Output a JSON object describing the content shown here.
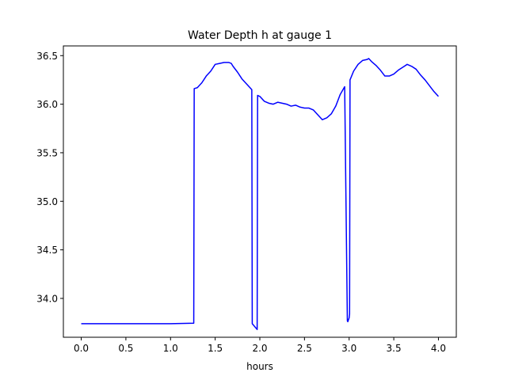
{
  "chart_data": {
    "type": "line",
    "title": "Water Depth h at gauge 1",
    "xlabel": "hours",
    "ylabel": "",
    "xlim": [
      -0.2,
      4.2
    ],
    "ylim": [
      33.6,
      36.6
    ],
    "xticks": [
      0.0,
      0.5,
      1.0,
      1.5,
      2.0,
      2.5,
      3.0,
      3.5,
      4.0
    ],
    "xtick_labels": [
      "0.0",
      "0.5",
      "1.0",
      "1.5",
      "2.0",
      "2.5",
      "3.0",
      "3.5",
      "4.0"
    ],
    "yticks": [
      34.0,
      34.5,
      35.0,
      35.5,
      36.0,
      36.5
    ],
    "ytick_labels": [
      "34.0",
      "34.5",
      "35.0",
      "35.5",
      "36.0",
      "36.5"
    ],
    "grid": false,
    "series": [
      {
        "color": "#0000ff",
        "x": [
          0.0,
          0.5,
          1.0,
          1.26,
          1.265,
          1.3,
          1.35,
          1.4,
          1.45,
          1.5,
          1.55,
          1.6,
          1.65,
          1.68,
          1.7,
          1.75,
          1.8,
          1.85,
          1.9,
          1.91,
          1.915,
          1.97,
          1.975,
          2.0,
          2.05,
          2.1,
          2.15,
          2.2,
          2.25,
          2.3,
          2.35,
          2.4,
          2.45,
          2.5,
          2.55,
          2.6,
          2.65,
          2.7,
          2.75,
          2.8,
          2.85,
          2.9,
          2.95,
          2.98,
          2.985,
          3.0,
          3.005,
          3.01,
          3.05,
          3.1,
          3.15,
          3.2,
          3.22,
          3.25,
          3.3,
          3.35,
          3.4,
          3.45,
          3.5,
          3.55,
          3.6,
          3.65,
          3.7,
          3.75,
          3.8,
          3.85,
          3.9,
          3.95,
          4.0
        ],
        "y": [
          33.74,
          33.74,
          33.74,
          33.745,
          36.16,
          36.17,
          36.22,
          36.29,
          36.34,
          36.41,
          36.42,
          36.43,
          36.43,
          36.42,
          36.39,
          36.33,
          36.26,
          36.21,
          36.16,
          36.15,
          33.74,
          33.68,
          36.09,
          36.08,
          36.03,
          36.01,
          36.0,
          36.02,
          36.01,
          36.0,
          35.98,
          35.99,
          35.97,
          35.96,
          35.96,
          35.94,
          35.89,
          35.84,
          35.86,
          35.9,
          35.98,
          36.1,
          36.18,
          33.77,
          33.76,
          33.8,
          33.84,
          36.25,
          36.34,
          36.41,
          36.45,
          36.46,
          36.47,
          36.44,
          36.4,
          36.35,
          36.29,
          36.29,
          36.31,
          36.35,
          36.38,
          36.41,
          36.39,
          36.36,
          36.3,
          36.25,
          36.19,
          36.13,
          36.08
        ]
      }
    ]
  }
}
